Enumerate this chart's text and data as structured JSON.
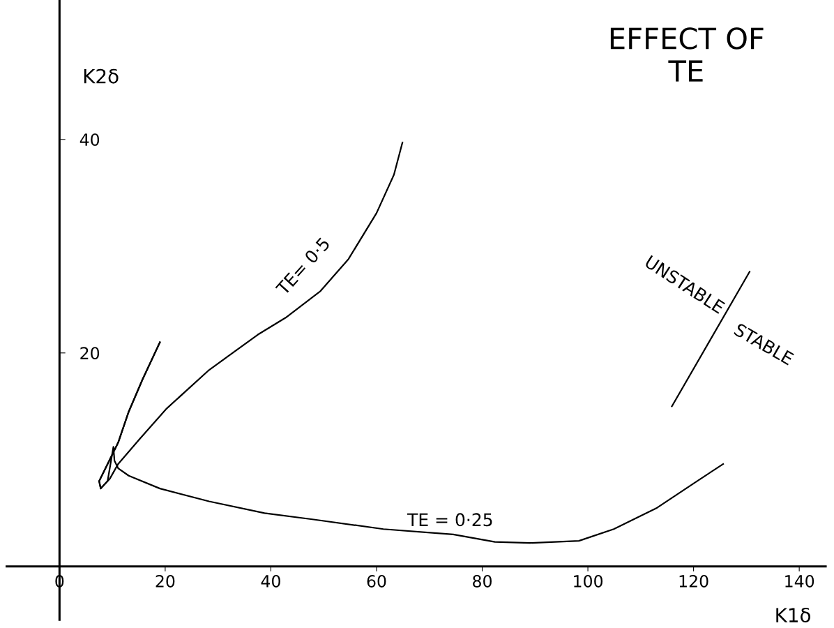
{
  "chart_data": {
    "type": "line",
    "title": "EFFECT OF\nTE",
    "xlabel": "K1δ",
    "ylabel": "K2δ",
    "xlim": [
      -10,
      145
    ],
    "ylim": [
      -5,
      53
    ],
    "xticks": [
      0,
      20,
      40,
      60,
      80,
      100,
      120,
      140
    ],
    "yticks": [
      20,
      40
    ],
    "grid": false,
    "legend": false,
    "marker": "none",
    "line_style": "solid",
    "series": [
      {
        "color": "#000000",
        "x": [
          19.0,
          15.7,
          13.1,
          11.1,
          9.1,
          7.5,
          7.8,
          9.5,
          11.1,
          15.1,
          20.3,
          28.3,
          37.5,
          42.8,
          49.4,
          54.7,
          60.0,
          63.3,
          64.9
        ],
        "values": [
          21.0,
          17.5,
          14.5,
          11.6,
          9.6,
          8.0,
          7.3,
          8.2,
          9.6,
          11.9,
          14.8,
          18.4,
          21.7,
          23.3,
          25.8,
          28.8,
          33.1,
          36.7,
          39.7
        ]
      },
      {
        "color": "#000000",
        "x": [
          19.0,
          15.7,
          13.1,
          11.1,
          9.1,
          7.5,
          7.8,
          9.1,
          10.2,
          10.4,
          11.1,
          13.1,
          19.0,
          28.3,
          38.8,
          48.1,
          61.3,
          74.5,
          82.4,
          89.0,
          98.3,
          104.9,
          113.1,
          120.7,
          125.6
        ],
        "values": [
          21.0,
          17.5,
          14.5,
          11.6,
          9.6,
          8.0,
          7.3,
          8.0,
          11.2,
          9.9,
          9.2,
          8.5,
          7.3,
          6.1,
          5.0,
          4.4,
          3.5,
          3.0,
          2.3,
          2.2,
          2.4,
          3.5,
          5.5,
          8.0,
          9.6
        ]
      },
      {
        "color": "#000000",
        "x": [
          115.9,
          130.6
        ],
        "values": [
          15.0,
          27.6
        ]
      }
    ],
    "annotations": [
      "TE= 0·5",
      "TE = 0·25",
      "UNSTABLE",
      "STABLE"
    ]
  }
}
